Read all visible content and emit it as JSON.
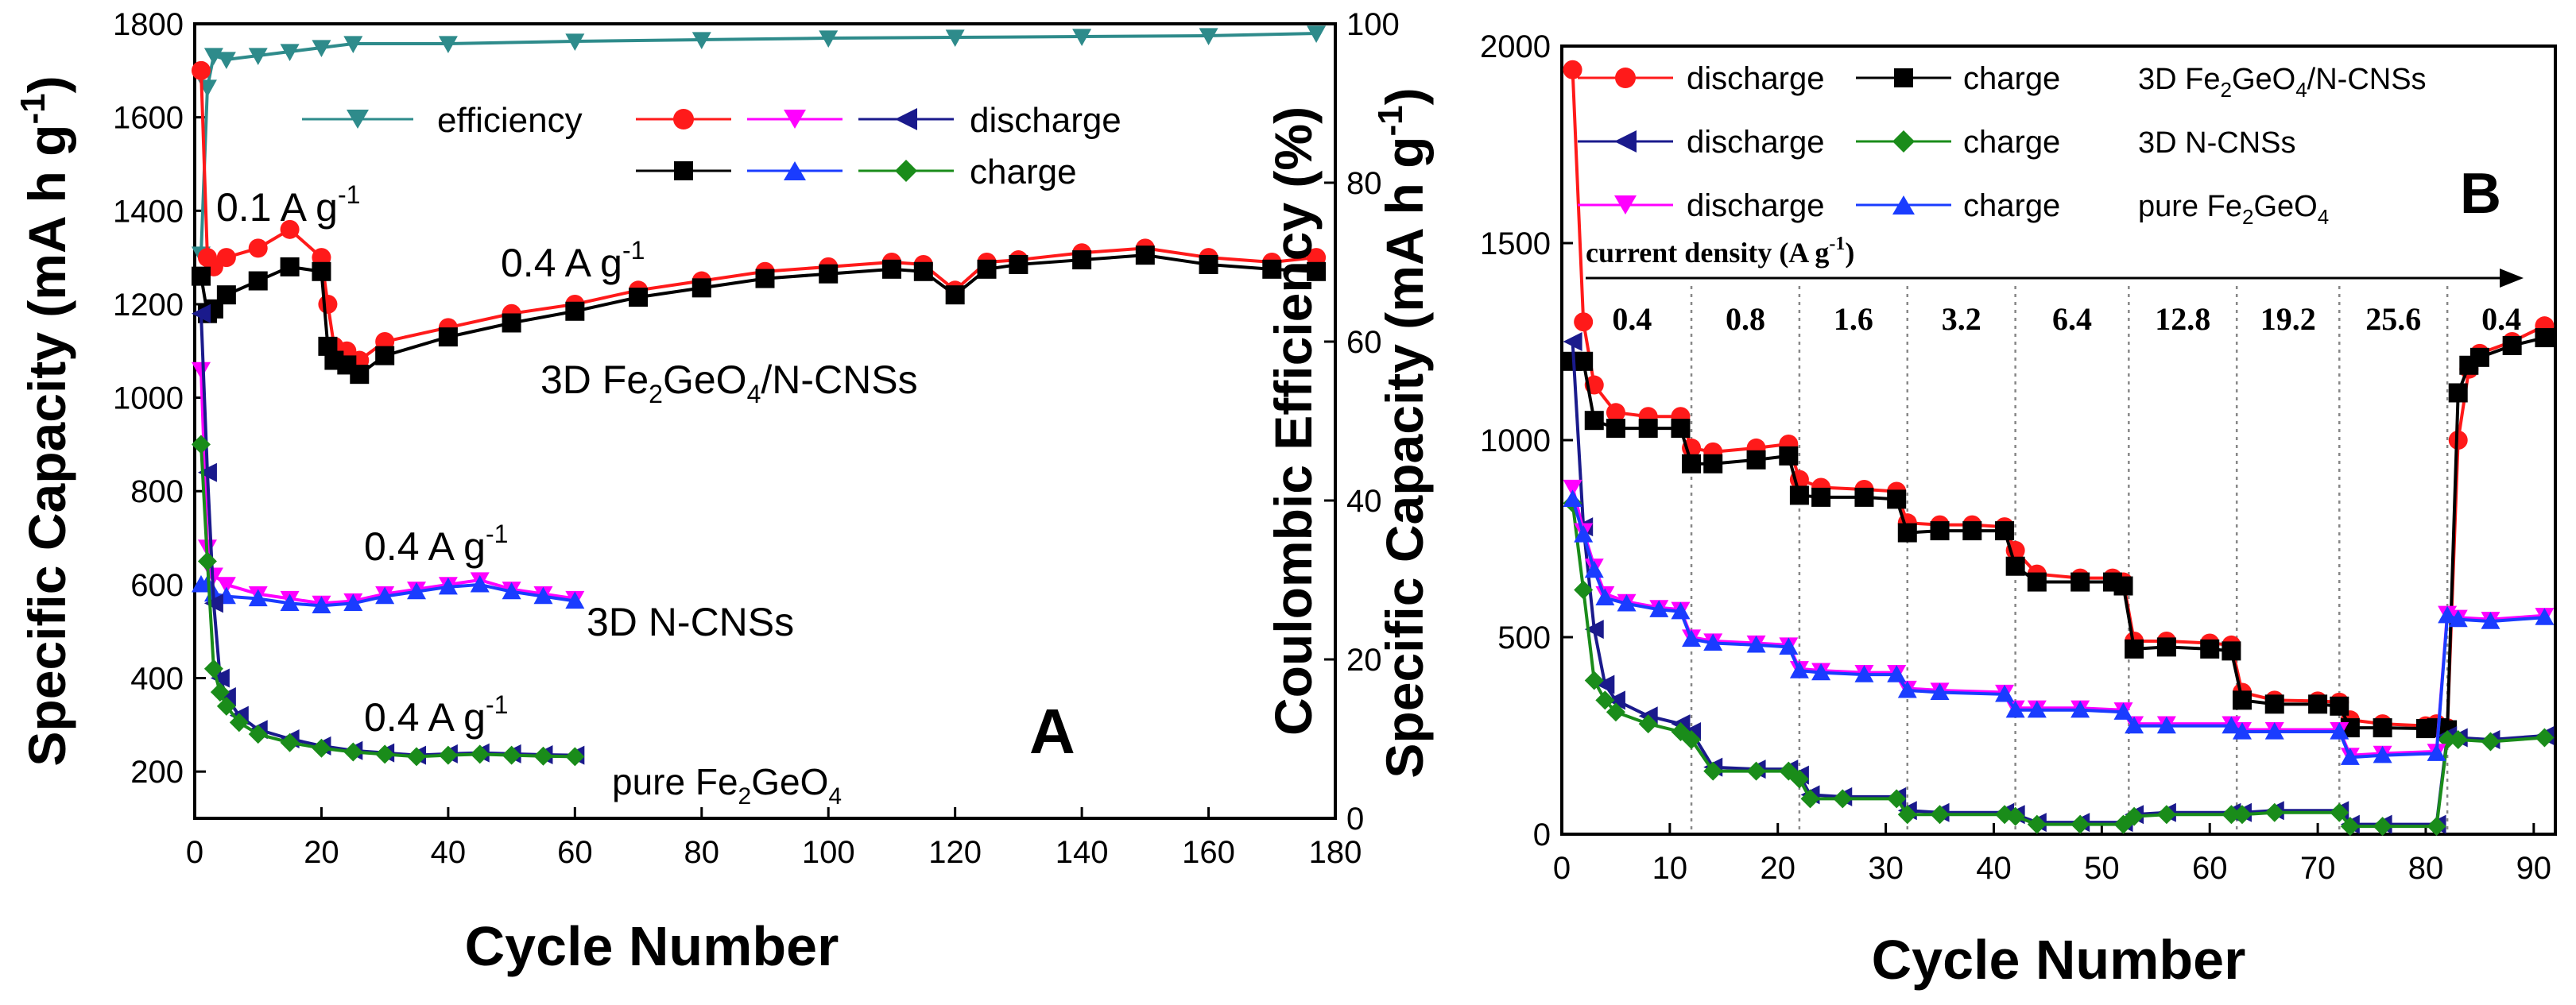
{
  "chart_data": [
    {
      "panel": "A",
      "type": "line",
      "panel_label": "A",
      "xlabel": "Cycle Number",
      "ylabel": "Specific Capacity (mA h g⁻¹)",
      "ylabel_parts": {
        "base": "Specific Capacity (mA h g",
        "sup": "-1",
        "end": ")"
      },
      "y2label": "Coulombic Efficiency (%)",
      "xlim": [
        0,
        180
      ],
      "ylim": [
        100,
        1800
      ],
      "y2lim": [
        0,
        100
      ],
      "x_ticks": [
        0,
        20,
        40,
        60,
        80,
        100,
        120,
        140,
        160,
        180
      ],
      "y_ticks": [
        200,
        400,
        600,
        800,
        1000,
        1200,
        1400,
        1600,
        1800
      ],
      "y2_ticks": [
        0,
        20,
        40,
        60,
        80,
        100
      ],
      "legend": {
        "efficiency_label": "efficiency",
        "discharge_label": "discharge",
        "charge_label": "charge"
      },
      "annotations": {
        "rate_initial": {
          "base": "0.1 A g",
          "sup": "-1"
        },
        "rate_fgo": {
          "base": "0.4 A g",
          "sup": "-1"
        },
        "rate_cns": {
          "base": "0.4 A g",
          "sup": "-1"
        },
        "rate_pure": {
          "base": "0.4 A g",
          "sup": "-1"
        },
        "name_fgo": {
          "parts": [
            "3D Fe",
            "2",
            "GeO",
            "4",
            "/N-CNSs"
          ]
        },
        "name_cns": {
          "parts": [
            "3D N-CNSs"
          ]
        },
        "name_pure": {
          "parts": [
            "pure Fe",
            "2",
            "GeO",
            "4"
          ]
        }
      },
      "series": [
        {
          "name": "efficiency",
          "axis": "right",
          "color": "#2e8b8b",
          "marker": "tri-down",
          "x": [
            1,
            2,
            3,
            5,
            10,
            15,
            20,
            25,
            40,
            60,
            80,
            100,
            120,
            140,
            160,
            177
          ],
          "values": [
            71,
            92,
            96,
            95.5,
            96,
            96.5,
            97,
            97.5,
            97.5,
            97.8,
            98,
            98.2,
            98.3,
            98.4,
            98.5,
            98.8
          ]
        },
        {
          "name": "3D Fe2GeO4/N-CNSs discharge",
          "axis": "left",
          "color": "#ff1a1a",
          "marker": "circle",
          "x": [
            1,
            2,
            3,
            5,
            10,
            15,
            20,
            21,
            22,
            24,
            26,
            30,
            40,
            50,
            60,
            70,
            80,
            90,
            100,
            110,
            115,
            120,
            125,
            130,
            140,
            150,
            160,
            170,
            177
          ],
          "values": [
            1700,
            1300,
            1280,
            1300,
            1320,
            1360,
            1300,
            1200,
            1110,
            1100,
            1080,
            1120,
            1150,
            1180,
            1200,
            1230,
            1250,
            1270,
            1280,
            1290,
            1285,
            1230,
            1290,
            1295,
            1310,
            1320,
            1300,
            1290,
            1300
          ]
        },
        {
          "name": "3D Fe2GeO4/N-CNSs charge",
          "axis": "left",
          "color": "#000000",
          "marker": "square",
          "x": [
            1,
            2,
            3,
            5,
            10,
            15,
            20,
            21,
            22,
            24,
            26,
            30,
            40,
            50,
            60,
            70,
            80,
            90,
            100,
            110,
            115,
            120,
            125,
            130,
            140,
            150,
            160,
            170,
            177
          ],
          "values": [
            1260,
            1180,
            1190,
            1220,
            1250,
            1280,
            1270,
            1110,
            1080,
            1070,
            1050,
            1090,
            1130,
            1160,
            1185,
            1215,
            1235,
            1255,
            1265,
            1275,
            1270,
            1220,
            1275,
            1285,
            1295,
            1305,
            1285,
            1275,
            1270
          ]
        },
        {
          "name": "3D N-CNSs discharge",
          "axis": "left",
          "color": "#ff00ff",
          "marker": "tri-down",
          "x": [
            1,
            2,
            3,
            5,
            10,
            15,
            20,
            25,
            30,
            35,
            40,
            45,
            50,
            55,
            60
          ],
          "values": [
            1060,
            680,
            620,
            600,
            580,
            570,
            560,
            565,
            580,
            590,
            600,
            610,
            590,
            580,
            570
          ]
        },
        {
          "name": "3D N-CNSs charge",
          "axis": "left",
          "color": "#1a3cff",
          "marker": "tri-up",
          "x": [
            1,
            2,
            3,
            5,
            10,
            15,
            20,
            25,
            30,
            35,
            40,
            45,
            50,
            55,
            60
          ],
          "values": [
            600,
            600,
            580,
            575,
            570,
            560,
            555,
            560,
            575,
            585,
            595,
            600,
            585,
            575,
            565
          ]
        },
        {
          "name": "pure Fe2GeO4 discharge",
          "axis": "left",
          "color": "#1a1a8c",
          "marker": "tri-left",
          "x": [
            1,
            2,
            3,
            4,
            5,
            7,
            10,
            15,
            20,
            25,
            30,
            35,
            40,
            45,
            50,
            55,
            60
          ],
          "values": [
            1180,
            840,
            560,
            400,
            360,
            320,
            290,
            270,
            255,
            245,
            240,
            235,
            238,
            240,
            238,
            236,
            235
          ]
        },
        {
          "name": "pure Fe2GeO4 charge",
          "axis": "left",
          "color": "#1a8c1a",
          "marker": "diamond",
          "x": [
            1,
            2,
            3,
            4,
            5,
            7,
            10,
            15,
            20,
            25,
            30,
            35,
            40,
            45,
            50,
            55,
            60
          ],
          "values": [
            900,
            650,
            420,
            370,
            340,
            305,
            280,
            262,
            250,
            242,
            237,
            232,
            235,
            237,
            235,
            233,
            232
          ]
        }
      ]
    },
    {
      "panel": "B",
      "type": "line",
      "panel_label": "B",
      "xlabel": "Cycle Number",
      "ylabel": "Specific Capacity (mA h g⁻¹)",
      "ylabel_parts": {
        "base": "Specific Capacity (mA h g",
        "sup": "-1",
        "end": ")"
      },
      "xlim": [
        0,
        92
      ],
      "ylim": [
        0,
        2000
      ],
      "x_ticks": [
        0,
        10,
        20,
        30,
        40,
        50,
        60,
        70,
        80,
        90
      ],
      "y_ticks": [
        0,
        500,
        1000,
        1500,
        2000
      ],
      "current_density_title": {
        "base": "current density (A g",
        "sup": "-1",
        "end": ")"
      },
      "rate_labels": [
        "0.4",
        "0.8",
        "1.6",
        "3.2",
        "6.4",
        "12.8",
        "19.2",
        "25.6",
        "0.4"
      ],
      "rate_boundaries": [
        12,
        22,
        32,
        42,
        52.5,
        62.5,
        72,
        82
      ],
      "legend": [
        {
          "discharge_label": "discharge",
          "charge_label": "charge",
          "name_parts": [
            "3D Fe",
            "2",
            "GeO",
            "4",
            "/N-CNSs"
          ]
        },
        {
          "discharge_label": "discharge",
          "charge_label": "charge",
          "name_parts": [
            "3D N-CNSs"
          ]
        },
        {
          "discharge_label": "discharge",
          "charge_label": "charge",
          "name_parts": [
            "pure Fe",
            "2",
            "GeO",
            "4"
          ]
        }
      ],
      "series": [
        {
          "name": "3D Fe2GeO4/N-CNSs discharge",
          "color": "#ff1a1a",
          "marker": "circle",
          "x": [
            1,
            2,
            3,
            5,
            8,
            11,
            12,
            14,
            18,
            21,
            22,
            24,
            28,
            31,
            32,
            35,
            38,
            41,
            42,
            44,
            48,
            51,
            52,
            53,
            56,
            60,
            62,
            63,
            66,
            70,
            72,
            73,
            76,
            80,
            81,
            82,
            83,
            84,
            85,
            88,
            91
          ],
          "values": [
            1940,
            1300,
            1140,
            1070,
            1060,
            1060,
            980,
            970,
            980,
            990,
            900,
            880,
            875,
            870,
            790,
            785,
            785,
            780,
            720,
            660,
            650,
            650,
            640,
            490,
            490,
            485,
            480,
            360,
            340,
            338,
            335,
            290,
            280,
            275,
            280,
            270,
            1000,
            1180,
            1220,
            1250,
            1290
          ]
        },
        {
          "name": "3D Fe2GeO4/N-CNSs charge",
          "color": "#000000",
          "marker": "square",
          "x": [
            1,
            2,
            3,
            5,
            8,
            11,
            12,
            14,
            18,
            21,
            22,
            24,
            28,
            31,
            32,
            35,
            38,
            41,
            42,
            44,
            48,
            51,
            52,
            53,
            56,
            60,
            62,
            63,
            66,
            70,
            72,
            73,
            76,
            80,
            81,
            82,
            83,
            84,
            85,
            88,
            91
          ],
          "values": [
            1200,
            1200,
            1050,
            1030,
            1030,
            1030,
            940,
            940,
            950,
            960,
            860,
            855,
            855,
            850,
            765,
            770,
            770,
            770,
            680,
            640,
            640,
            640,
            630,
            470,
            475,
            470,
            465,
            340,
            330,
            330,
            325,
            270,
            270,
            268,
            270,
            265,
            1120,
            1190,
            1210,
            1240,
            1260
          ]
        },
        {
          "name": "3D N-CNSs discharge",
          "color": "#1a1a8c",
          "marker": "tri-left",
          "x": [
            1,
            2,
            3,
            4,
            5,
            8,
            11,
            12,
            14,
            18,
            21,
            22,
            23,
            26,
            31,
            32,
            35,
            41,
            42,
            44,
            48,
            52,
            53,
            56,
            62,
            63,
            66,
            72,
            73,
            76,
            81,
            82,
            83,
            86,
            91
          ],
          "values": [
            1250,
            780,
            520,
            380,
            340,
            300,
            280,
            260,
            170,
            165,
            165,
            150,
            100,
            95,
            95,
            60,
            55,
            55,
            50,
            30,
            30,
            30,
            50,
            55,
            55,
            55,
            60,
            60,
            25,
            25,
            25,
            250,
            245,
            240,
            250
          ]
        },
        {
          "name": "3D N-CNSs charge",
          "color": "#1a8c1a",
          "marker": "diamond",
          "x": [
            1,
            2,
            3,
            4,
            5,
            8,
            11,
            12,
            14,
            18,
            21,
            22,
            23,
            26,
            31,
            32,
            35,
            41,
            42,
            44,
            48,
            52,
            53,
            56,
            62,
            63,
            66,
            72,
            73,
            76,
            81,
            82,
            83,
            86,
            91
          ],
          "values": [
            840,
            620,
            390,
            340,
            310,
            280,
            260,
            240,
            160,
            160,
            160,
            140,
            90,
            90,
            90,
            50,
            50,
            50,
            45,
            25,
            25,
            25,
            45,
            50,
            50,
            50,
            55,
            55,
            20,
            20,
            20,
            240,
            240,
            235,
            245
          ]
        },
        {
          "name": "pure Fe2GeO4 discharge",
          "color": "#ff00ff",
          "marker": "tri-down",
          "x": [
            1,
            2,
            3,
            4,
            6,
            9,
            11,
            12,
            14,
            18,
            21,
            22,
            24,
            28,
            31,
            32,
            35,
            41,
            42,
            44,
            48,
            52,
            53,
            56,
            62,
            63,
            66,
            72,
            73,
            76,
            81,
            82,
            83,
            86,
            91
          ],
          "values": [
            880,
            770,
            680,
            610,
            590,
            575,
            570,
            500,
            490,
            485,
            480,
            420,
            415,
            410,
            410,
            370,
            365,
            360,
            320,
            320,
            320,
            315,
            280,
            280,
            280,
            265,
            265,
            265,
            200,
            205,
            210,
            560,
            550,
            545,
            555
          ]
        },
        {
          "name": "pure Fe2GeO4 charge",
          "color": "#1a3cff",
          "marker": "tri-up",
          "x": [
            1,
            2,
            3,
            4,
            6,
            9,
            11,
            12,
            14,
            18,
            21,
            22,
            24,
            28,
            31,
            32,
            35,
            41,
            42,
            44,
            48,
            52,
            53,
            56,
            62,
            63,
            66,
            72,
            73,
            76,
            81,
            82,
            83,
            86,
            91
          ],
          "values": [
            850,
            760,
            670,
            600,
            585,
            570,
            565,
            495,
            485,
            480,
            475,
            415,
            410,
            405,
            405,
            365,
            360,
            355,
            315,
            315,
            315,
            310,
            275,
            275,
            275,
            260,
            260,
            260,
            195,
            200,
            205,
            555,
            545,
            540,
            550
          ]
        }
      ]
    }
  ]
}
